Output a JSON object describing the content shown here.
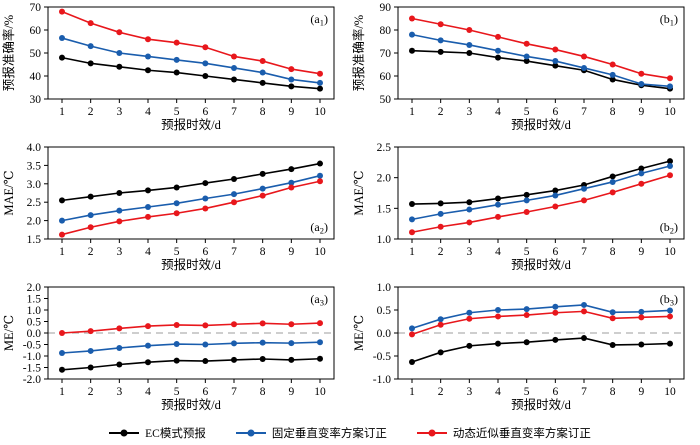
{
  "colors": {
    "axis": "#000000",
    "zero_line": "#b0b0b0"
  },
  "legend": {
    "items": [
      {
        "label": "EC模式预报",
        "color": "#000000"
      },
      {
        "label": "固定垂直变率方案订正",
        "color": "#1a5dad"
      },
      {
        "label": "动态近似垂直变率方案订正",
        "color": "#e8171c"
      }
    ]
  },
  "chart_data": [
    {
      "id": "a1",
      "type": "line",
      "panel_label": {
        "main": "a",
        "sub": "1"
      },
      "panel_label_pos": "top-right",
      "xlabel": "预报时效/d",
      "ylabel": "预报准确率/%",
      "x": [
        1,
        2,
        3,
        4,
        5,
        6,
        7,
        8,
        9,
        10
      ],
      "ylim": [
        30,
        70
      ],
      "yticks": [
        30,
        40,
        50,
        60,
        70
      ],
      "ytick_labels": [
        "30",
        "40",
        "50",
        "60",
        "70"
      ],
      "zero_line": false,
      "grid": false,
      "series": [
        {
          "name": "EC模式预报",
          "color": "#000000",
          "values": [
            48,
            45.5,
            44,
            42.5,
            41.5,
            40,
            38.5,
            37,
            35.5,
            34.5
          ]
        },
        {
          "name": "固定垂直变率方案订正",
          "color": "#1a5dad",
          "values": [
            56.5,
            53,
            50,
            48.5,
            47,
            45.5,
            43.5,
            41.5,
            38.5,
            37
          ]
        },
        {
          "name": "动态近似垂直变率方案订正",
          "color": "#e8171c",
          "values": [
            68,
            63,
            59,
            56,
            54.5,
            52.5,
            48.5,
            46.5,
            43,
            41
          ]
        }
      ]
    },
    {
      "id": "b1",
      "type": "line",
      "panel_label": {
        "main": "b",
        "sub": "1"
      },
      "panel_label_pos": "top-right",
      "xlabel": "预报时效/d",
      "ylabel": "预报准确率/%",
      "x": [
        1,
        2,
        3,
        4,
        5,
        6,
        7,
        8,
        9,
        10
      ],
      "ylim": [
        50,
        90
      ],
      "yticks": [
        50,
        60,
        70,
        80,
        90
      ],
      "ytick_labels": [
        "50",
        "60",
        "70",
        "80",
        "90"
      ],
      "zero_line": false,
      "grid": false,
      "series": [
        {
          "name": "EC模式预报",
          "color": "#000000",
          "values": [
            71,
            70.5,
            70,
            68,
            66.5,
            64.5,
            62.5,
            58.5,
            56,
            54.5
          ]
        },
        {
          "name": "固定垂直变率方案订正",
          "color": "#1a5dad",
          "values": [
            78,
            75.5,
            73.5,
            71,
            68.5,
            66.5,
            63.5,
            60.5,
            56.5,
            55.5
          ]
        },
        {
          "name": "动态近似垂直变率方案订正",
          "color": "#e8171c",
          "values": [
            85,
            82.5,
            80,
            77,
            74,
            71.5,
            68.5,
            65,
            61,
            59
          ]
        }
      ]
    },
    {
      "id": "a2",
      "type": "line",
      "panel_label": {
        "main": "a",
        "sub": "2"
      },
      "panel_label_pos": "bottom-right",
      "xlabel": "预报时效/d",
      "ylabel": "MAE/℃",
      "x": [
        1,
        2,
        3,
        4,
        5,
        6,
        7,
        8,
        9,
        10
      ],
      "ylim": [
        1.5,
        4.0
      ],
      "yticks": [
        1.5,
        2.0,
        2.5,
        3.0,
        3.5,
        4.0
      ],
      "ytick_labels": [
        "1.5",
        "2.0",
        "2.5",
        "3.0",
        "3.5",
        "4.0"
      ],
      "zero_line": false,
      "grid": false,
      "series": [
        {
          "name": "EC模式预报",
          "color": "#000000",
          "values": [
            2.55,
            2.65,
            2.75,
            2.82,
            2.9,
            3.02,
            3.13,
            3.27,
            3.4,
            3.55
          ]
        },
        {
          "name": "固定垂直变率方案订正",
          "color": "#1a5dad",
          "values": [
            2.0,
            2.15,
            2.27,
            2.37,
            2.47,
            2.6,
            2.72,
            2.87,
            3.03,
            3.22
          ]
        },
        {
          "name": "动态近似垂直变率方案订正",
          "color": "#e8171c",
          "values": [
            1.62,
            1.82,
            1.98,
            2.1,
            2.2,
            2.33,
            2.5,
            2.68,
            2.9,
            3.07
          ]
        }
      ]
    },
    {
      "id": "b2",
      "type": "line",
      "panel_label": {
        "main": "b",
        "sub": "2"
      },
      "panel_label_pos": "bottom-right",
      "xlabel": "预报时效/d",
      "ylabel": "MAE/℃",
      "x": [
        1,
        2,
        3,
        4,
        5,
        6,
        7,
        8,
        9,
        10
      ],
      "ylim": [
        1.0,
        2.5
      ],
      "yticks": [
        1.0,
        1.5,
        2.0,
        2.5
      ],
      "ytick_labels": [
        "1.0",
        "1.5",
        "2.0",
        "2.5"
      ],
      "zero_line": false,
      "grid": false,
      "series": [
        {
          "name": "EC模式预报",
          "color": "#000000",
          "values": [
            1.57,
            1.58,
            1.6,
            1.66,
            1.72,
            1.79,
            1.88,
            2.02,
            2.15,
            2.27
          ]
        },
        {
          "name": "固定垂直变率方案订正",
          "color": "#1a5dad",
          "values": [
            1.32,
            1.41,
            1.48,
            1.56,
            1.63,
            1.71,
            1.82,
            1.93,
            2.07,
            2.19
          ]
        },
        {
          "name": "动态近似垂直变率方案订正",
          "color": "#e8171c",
          "values": [
            1.11,
            1.2,
            1.27,
            1.36,
            1.44,
            1.53,
            1.63,
            1.76,
            1.9,
            2.04
          ]
        }
      ]
    },
    {
      "id": "a3",
      "type": "line",
      "panel_label": {
        "main": "a",
        "sub": "3"
      },
      "panel_label_pos": "top-right",
      "xlabel": "预报时效/d",
      "ylabel": "ME/℃",
      "x": [
        1,
        2,
        3,
        4,
        5,
        6,
        7,
        8,
        9,
        10
      ],
      "ylim": [
        -2.0,
        2.0
      ],
      "yticks": [
        -2.0,
        -1.5,
        -1.0,
        -0.5,
        0.0,
        0.5,
        1.0,
        1.5,
        2.0
      ],
      "ytick_labels": [
        "-2.0",
        "-1.5",
        "-1.0",
        "-0.5",
        "0.0",
        "0.5",
        "1.0",
        "1.5",
        "2.0"
      ],
      "zero_line": true,
      "grid": false,
      "series": [
        {
          "name": "EC模式预报",
          "color": "#000000",
          "values": [
            -1.6,
            -1.5,
            -1.37,
            -1.27,
            -1.2,
            -1.22,
            -1.17,
            -1.13,
            -1.17,
            -1.12
          ]
        },
        {
          "name": "固定垂直变率方案订正",
          "color": "#1a5dad",
          "values": [
            -0.87,
            -0.78,
            -0.65,
            -0.55,
            -0.48,
            -0.5,
            -0.45,
            -0.42,
            -0.44,
            -0.4
          ]
        },
        {
          "name": "动态近似垂直变率方案订正",
          "color": "#e8171c",
          "values": [
            0.0,
            0.08,
            0.2,
            0.3,
            0.35,
            0.33,
            0.38,
            0.42,
            0.38,
            0.43
          ]
        }
      ]
    },
    {
      "id": "b3",
      "type": "line",
      "panel_label": {
        "main": "b",
        "sub": "3"
      },
      "panel_label_pos": "top-right",
      "xlabel": "预报时效/d",
      "ylabel": "ME/℃",
      "x": [
        1,
        2,
        3,
        4,
        5,
        6,
        7,
        8,
        9,
        10
      ],
      "ylim": [
        -1.0,
        1.0
      ],
      "yticks": [
        -1.0,
        -0.5,
        0.0,
        0.5,
        1.0
      ],
      "ytick_labels": [
        "-1.0",
        "-0.5",
        "0.0",
        "0.5",
        "1.0"
      ],
      "zero_line": true,
      "grid": false,
      "series": [
        {
          "name": "EC模式预报",
          "color": "#000000",
          "values": [
            -0.63,
            -0.42,
            -0.28,
            -0.23,
            -0.2,
            -0.15,
            -0.11,
            -0.26,
            -0.25,
            -0.23
          ]
        },
        {
          "name": "固定垂直变率方案订正",
          "color": "#1a5dad",
          "values": [
            0.1,
            0.3,
            0.44,
            0.5,
            0.52,
            0.57,
            0.61,
            0.45,
            0.46,
            0.49
          ]
        },
        {
          "name": "动态近似垂直变率方案订正",
          "color": "#e8171c",
          "values": [
            -0.03,
            0.18,
            0.31,
            0.36,
            0.39,
            0.44,
            0.47,
            0.32,
            0.34,
            0.36
          ]
        }
      ]
    }
  ]
}
